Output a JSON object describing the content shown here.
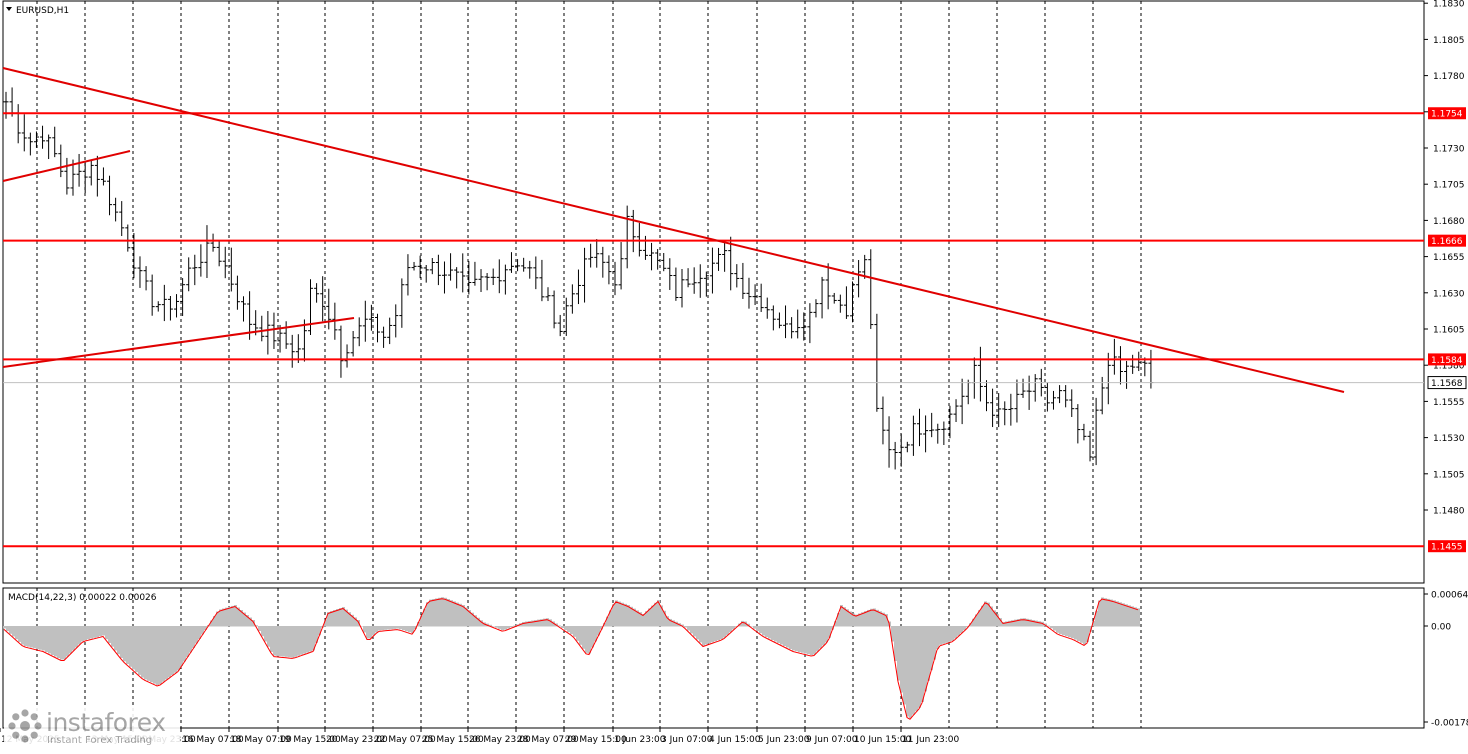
{
  "window": {
    "title": "EURUSD,H1",
    "menu_icon": "triangle-down-icon"
  },
  "price_axis": {
    "ticks": [
      "1.1830",
      "1.1805",
      "1.1780",
      "1.1755",
      "1.1730",
      "1.1705",
      "1.1680",
      "1.1655",
      "1.1630",
      "1.1605",
      "1.1580",
      "1.1555",
      "1.1530",
      "1.1505",
      "1.1480"
    ],
    "current_price": "1.1568"
  },
  "levels": [
    {
      "value": 1.1754,
      "label": "1.1754"
    },
    {
      "value": 1.1666,
      "label": "1.1666"
    },
    {
      "value": 1.1584,
      "label": "1.1584"
    },
    {
      "value": 1.1455,
      "label": "1.1455"
    }
  ],
  "macd": {
    "header": "MACD(14,22,3) 0.00022 0.00026",
    "ticks": [
      "0.00064",
      "0.00",
      "-0.00178"
    ]
  },
  "time_axis": {
    "labels": [
      "12 May 2025",
      "13 May 15:00",
      "14 May 23:00",
      "16 May 07:00",
      "18 May 07:00",
      "19 May 15:00",
      "20 May 23:00",
      "22 May 07:00",
      "25 May 15:00",
      "26 May 23:00",
      "28 May 07:00",
      "29 May 15:00",
      "1 Jun 23:00",
      "3 Jun 07:00",
      "4 Jun 15:00",
      "5 Jun 23:00",
      "9 Jun 07:00",
      "10 Jun 15:00",
      "11 Jun 23:00"
    ]
  },
  "watermark": {
    "brand": "instaforex",
    "tagline": "Instant Forex Trading",
    "icon": "instaforex-logo-icon"
  },
  "colors": {
    "levels": "#ff0000",
    "trendlines": "#e00000",
    "bars": "#000000",
    "macd_hist": "#c0c0c0",
    "macd_signal": "#ff0000",
    "grid": "#000000"
  },
  "chart_data": {
    "type": "ohlc",
    "symbol": "EURUSD",
    "timeframe": "H1",
    "ylim": [
      1.1455,
      1.183
    ],
    "grid": true,
    "x_dates": [
      "12 May 2025",
      "13 May 15:00",
      "14 May 23:00",
      "16 May 07:00",
      "18 May 07:00",
      "19 May 15:00",
      "20 May 23:00",
      "22 May 07:00",
      "25 May 15:00",
      "26 May 23:00",
      "28 May 07:00",
      "29 May 15:00",
      "1 Jun 23:00",
      "3 Jun 07:00",
      "4 Jun 15:00",
      "5 Jun 23:00",
      "9 Jun 07:00",
      "10 Jun 15:00",
      "11 Jun 23:00"
    ],
    "close_path": [
      [
        0,
        1.1762
      ],
      [
        2,
        1.1745
      ],
      [
        4,
        1.1735
      ],
      [
        6,
        1.174
      ],
      [
        8,
        1.1725
      ],
      [
        10,
        1.1705
      ],
      [
        12,
        1.1712
      ],
      [
        14,
        1.1718
      ],
      [
        16,
        1.1705
      ],
      [
        18,
        1.1685
      ],
      [
        20,
        1.1665
      ],
      [
        22,
        1.164
      ],
      [
        24,
        1.1625
      ],
      [
        26,
        1.162
      ],
      [
        28,
        1.1625
      ],
      [
        30,
        1.1645
      ],
      [
        32,
        1.1655
      ],
      [
        34,
        1.1662
      ],
      [
        36,
        1.1648
      ],
      [
        38,
        1.1628
      ],
      [
        40,
        1.161
      ],
      [
        42,
        1.1605
      ],
      [
        44,
        1.16
      ],
      [
        46,
        1.1595
      ],
      [
        48,
        1.159
      ],
      [
        49,
        1.1605
      ],
      [
        50,
        1.163
      ],
      [
        52,
        1.1625
      ],
      [
        54,
        1.1605
      ],
      [
        55,
        1.1588
      ],
      [
        57,
        1.16
      ],
      [
        59,
        1.161
      ],
      [
        61,
        1.1605
      ],
      [
        62,
        1.16
      ],
      [
        64,
        1.1615
      ],
      [
        66,
        1.1648
      ],
      [
        68,
        1.165
      ],
      [
        70,
        1.1648
      ],
      [
        72,
        1.1645
      ],
      [
        74,
        1.164
      ],
      [
        76,
        1.1632
      ],
      [
        78,
        1.1638
      ],
      [
        80,
        1.164
      ],
      [
        82,
        1.1648
      ],
      [
        84,
        1.1652
      ],
      [
        86,
        1.1645
      ],
      [
        88,
        1.163
      ],
      [
        90,
        1.1615
      ],
      [
        91,
        1.1605
      ],
      [
        92,
        1.162
      ],
      [
        94,
        1.164
      ],
      [
        96,
        1.1655
      ],
      [
        98,
        1.165
      ],
      [
        100,
        1.164
      ],
      [
        101,
        1.165
      ],
      [
        102,
        1.1678
      ],
      [
        104,
        1.1665
      ],
      [
        106,
        1.1655
      ],
      [
        108,
        1.1645
      ],
      [
        110,
        1.163
      ],
      [
        112,
        1.164
      ],
      [
        114,
        1.1645
      ],
      [
        116,
        1.165
      ],
      [
        118,
        1.1655
      ],
      [
        120,
        1.164
      ],
      [
        122,
        1.163
      ],
      [
        124,
        1.1625
      ],
      [
        126,
        1.1615
      ],
      [
        128,
        1.1605
      ],
      [
        130,
        1.161
      ],
      [
        132,
        1.1615
      ],
      [
        134,
        1.164
      ],
      [
        136,
        1.1625
      ],
      [
        138,
        1.162
      ],
      [
        140,
        1.1645
      ],
      [
        141,
        1.165
      ],
      [
        142,
        1.161
      ],
      [
        143,
        1.1545
      ],
      [
        145,
        1.152
      ],
      [
        147,
        1.1525
      ],
      [
        149,
        1.1535
      ],
      [
        151,
        1.154
      ],
      [
        153,
        1.1538
      ],
      [
        155,
        1.1545
      ],
      [
        157,
        1.156
      ],
      [
        159,
        1.1575
      ],
      [
        161,
        1.1555
      ],
      [
        163,
        1.1545
      ],
      [
        165,
        1.155
      ],
      [
        167,
        1.156
      ],
      [
        169,
        1.1565
      ],
      [
        171,
        1.1555
      ],
      [
        173,
        1.156
      ],
      [
        175,
        1.1545
      ],
      [
        177,
        1.1525
      ],
      [
        178,
        1.1515
      ],
      [
        179,
        1.1545
      ],
      [
        181,
        1.1585
      ],
      [
        183,
        1.1575
      ],
      [
        185,
        1.158
      ],
      [
        187,
        1.1578
      ],
      [
        188,
        1.1568
      ]
    ]
  }
}
